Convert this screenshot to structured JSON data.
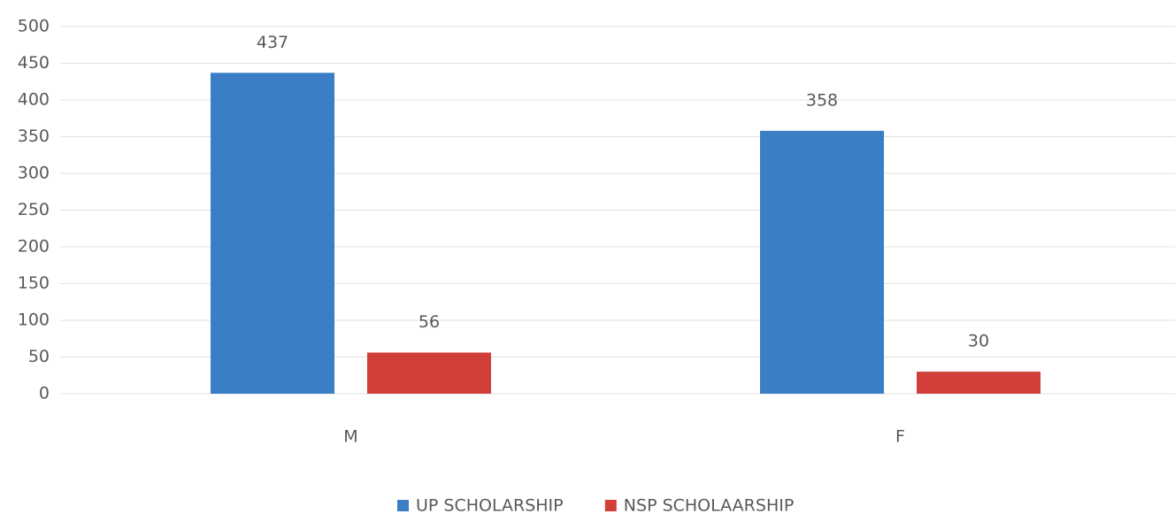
{
  "chart_data": {
    "type": "bar",
    "categories": [
      "M",
      "F"
    ],
    "series": [
      {
        "name": "UP SCHOLARSHIP",
        "color": "#3a7ec6",
        "values": [
          437,
          358
        ]
      },
      {
        "name": "NSP SCHOLAARSHIP",
        "color": "#d13f38",
        "values": [
          56,
          30
        ]
      }
    ],
    "ylim": [
      0,
      500
    ],
    "yticks": [
      0,
      50,
      100,
      150,
      200,
      250,
      300,
      350,
      400,
      450,
      500
    ],
    "grid": true,
    "legend": "bottom"
  }
}
